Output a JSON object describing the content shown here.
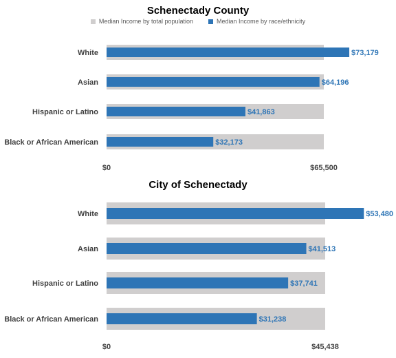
{
  "legend": {
    "total_label": "Median Income by total population",
    "race_label": "Median Income by race/ethnicity",
    "total_color": "#d0cece",
    "race_color": "#2e75b6"
  },
  "chart_data": [
    {
      "type": "bar",
      "orientation": "horizontal",
      "title": "Schenectady County",
      "categories": [
        "White",
        "Asian",
        "Hispanic or Latino",
        "Black or African American"
      ],
      "series": [
        {
          "name": "Median Income by total population",
          "values": [
            65500,
            65500,
            65500,
            65500
          ]
        },
        {
          "name": "Median Income by race/ethnicity",
          "values": [
            73179,
            64196,
            41863,
            32173
          ]
        }
      ],
      "value_labels": [
        "$73,179",
        "$64,196",
        "$41,863",
        "$32,173"
      ],
      "x_ticks": [
        0,
        65500
      ],
      "x_tick_labels": [
        "$0",
        "$65,500"
      ],
      "legend_position": "top"
    },
    {
      "type": "bar",
      "orientation": "horizontal",
      "title": "City of Schenectady",
      "categories": [
        "White",
        "Asian",
        "Hispanic or Latino",
        "Black or African American"
      ],
      "series": [
        {
          "name": "Median Income by total population",
          "values": [
            45438,
            45438,
            45438,
            45438
          ]
        },
        {
          "name": "Median Income by race/ethnicity",
          "values": [
            53480,
            41513,
            37741,
            31238
          ]
        }
      ],
      "value_labels": [
        "$53,480",
        "$41,513",
        "$37,741",
        "$31,238"
      ],
      "x_ticks": [
        0,
        45438
      ],
      "x_tick_labels": [
        "$0",
        "$45,438"
      ]
    }
  ]
}
